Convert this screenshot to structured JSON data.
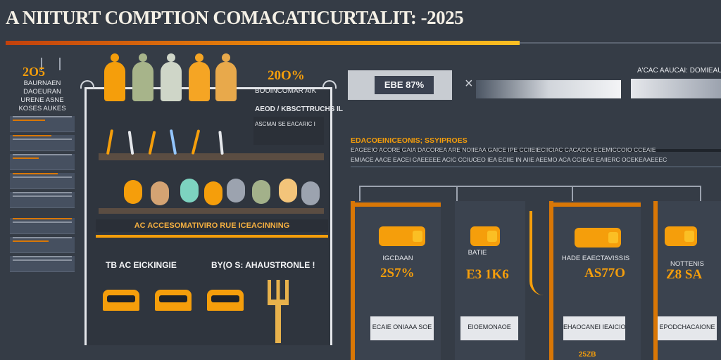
{
  "header": {
    "title": "A NIITURT COMPTION COMACATICURTALIT: -2025"
  },
  "left_column": {
    "year": "2O5",
    "lines": [
      "BAURNAEN",
      "DAOEURAN",
      "URENE ASNE",
      "KOSES AUKES"
    ]
  },
  "center_panel": {
    "band_label": "AC ACCESOMATIVIRO RUE ICEACINNING",
    "left_caption": "TB AC EICKINGIE",
    "right_caption": "BY(O S: AHAUSTRONLE !"
  },
  "middle_notes": {
    "percent": "20O%",
    "line1": "BOUINCOMAR AIK",
    "line2": "AEOD / KBSCTTRUCHS IL",
    "line3": "ASCMAI SE EACARIC I"
  },
  "right_header": {
    "box_label": "EBE 87%",
    "x_icon": "×",
    "corner_text": "A'CAC AAUCAI: DOMIEAUB: I U"
  },
  "section": {
    "title": "EDACOEINICEONIS; SSYIPROES",
    "line1": "EAGEEIO ACORE GAIA DACOREA ARE NOIIEAA GAICE IPE CCIIEIECIICIAC CACACIO ECEMICCOIO CCEAIE",
    "line2": "EMIACE AACE EACEI CAEEEEE ACIC CCIUCEO IEA ECIIE IN AIIE AEEMO ACA CCIEAE EAIIERC OCEKEAAEEEC"
  },
  "cards": [
    {
      "label": "IGCDAAN",
      "value": "2S7%",
      "box_text": "ECAIE ONIAAA SOE"
    },
    {
      "label": "BATIE",
      "value": "E3 1K6",
      "box_text": "EIOEMONAOE"
    },
    {
      "label": "HADE EAECTAVISSIS",
      "value": "AS77O",
      "box_text": "EHAOCANEI IEAICIO"
    },
    {
      "label": "NOTTENIS",
      "value": "Z8 SA",
      "box_text": "EPODCHACAIONE"
    }
  ],
  "card_footer": "25ZB",
  "colors": {
    "accent": "#f59e0b",
    "background": "#353c46",
    "card": "#3b434f"
  }
}
